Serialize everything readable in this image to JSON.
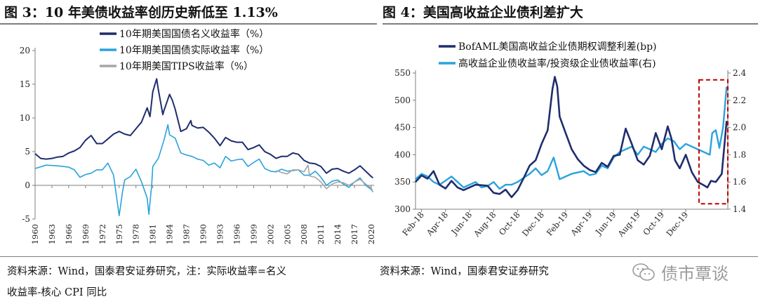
{
  "figure3": {
    "title": "图 3：10 年美债收益率创历史新低至 1.13%",
    "source_line1": "资料来源：Wind，国泰君安证券研究，注：实际收益率=名义",
    "source_line2": "收益率-核心 CPI 同比",
    "chart_data": {
      "type": "line",
      "y_ticks": [
        "20",
        "15",
        "10",
        "5",
        "0",
        "-5"
      ],
      "ylim": [
        -5,
        20
      ],
      "x_ticks": [
        "1960",
        "1963",
        "1966",
        "1969",
        "1972",
        "1975",
        "1978",
        "1981",
        "1984",
        "1987",
        "1990",
        "1993",
        "1996",
        "1999",
        "2002",
        "2005",
        "2008",
        "2011",
        "2014",
        "2017",
        "2020"
      ],
      "xlim": [
        1960,
        2020.5
      ],
      "grid": false,
      "legend_position": "top-center",
      "series": [
        {
          "name": "10年期美国国债名义收益率（%）",
          "color": "#1f2d6e",
          "points": [
            [
              1960,
              4.7
            ],
            [
              1961,
              4.0
            ],
            [
              1962,
              3.9
            ],
            [
              1963,
              4.0
            ],
            [
              1964,
              4.2
            ],
            [
              1965,
              4.3
            ],
            [
              1966,
              4.8
            ],
            [
              1967,
              5.1
            ],
            [
              1968,
              5.6
            ],
            [
              1969,
              6.7
            ],
            [
              1970,
              7.4
            ],
            [
              1971,
              6.2
            ],
            [
              1972,
              6.2
            ],
            [
              1973,
              6.9
            ],
            [
              1974,
              7.6
            ],
            [
              1975,
              8.0
            ],
            [
              1976,
              7.6
            ],
            [
              1977,
              7.4
            ],
            [
              1978,
              8.4
            ],
            [
              1979,
              9.4
            ],
            [
              1980,
              11.5
            ],
            [
              1980.5,
              10.2
            ],
            [
              1981,
              13.9
            ],
            [
              1981.7,
              15.8
            ],
            [
              1982,
              14.2
            ],
            [
              1982.8,
              10.5
            ],
            [
              1983,
              11.1
            ],
            [
              1984,
              13.5
            ],
            [
              1984.5,
              12.6
            ],
            [
              1985,
              11.3
            ],
            [
              1986,
              8.0
            ],
            [
              1987,
              8.4
            ],
            [
              1987.8,
              9.6
            ],
            [
              1988,
              8.9
            ],
            [
              1989,
              8.5
            ],
            [
              1990,
              8.6
            ],
            [
              1991,
              7.9
            ],
            [
              1992,
              7.0
            ],
            [
              1993,
              5.9
            ],
            [
              1994,
              7.1
            ],
            [
              1995,
              6.6
            ],
            [
              1996,
              6.4
            ],
            [
              1997,
              6.4
            ],
            [
              1998,
              5.3
            ],
            [
              1999,
              5.6
            ],
            [
              2000,
              6.0
            ],
            [
              2001,
              5.0
            ],
            [
              2002,
              4.6
            ],
            [
              2003,
              4.0
            ],
            [
              2004,
              4.3
            ],
            [
              2005,
              4.3
            ],
            [
              2006,
              4.8
            ],
            [
              2007,
              4.6
            ],
            [
              2008,
              3.7
            ],
            [
              2009,
              3.3
            ],
            [
              2010,
              3.2
            ],
            [
              2011,
              2.8
            ],
            [
              2012,
              1.8
            ],
            [
              2013,
              2.4
            ],
            [
              2014,
              2.5
            ],
            [
              2015,
              2.1
            ],
            [
              2016,
              1.8
            ],
            [
              2017,
              2.3
            ],
            [
              2018,
              2.9
            ],
            [
              2019,
              2.1
            ],
            [
              2020,
              1.3
            ],
            [
              2020.3,
              1.1
            ]
          ]
        },
        {
          "name": "10年期美国国债实际收益率（%）",
          "color": "#29a3dc",
          "points": [
            [
              1960,
              2.5
            ],
            [
              1962,
              3.0
            ],
            [
              1964,
              2.9
            ],
            [
              1966,
              2.7
            ],
            [
              1967,
              2.3
            ],
            [
              1968,
              1.2
            ],
            [
              1969,
              1.6
            ],
            [
              1970,
              1.8
            ],
            [
              1971,
              2.3
            ],
            [
              1972,
              2.3
            ],
            [
              1973,
              3.3
            ],
            [
              1974,
              1.5
            ],
            [
              1975,
              -4.5
            ],
            [
              1975.6,
              -1.0
            ],
            [
              1976,
              0.8
            ],
            [
              1977,
              1.3
            ],
            [
              1978,
              2.4
            ],
            [
              1979,
              0.5
            ],
            [
              1980,
              -1.9
            ],
            [
              1980.3,
              -4.3
            ],
            [
              1980.8,
              0.0
            ],
            [
              1981,
              2.8
            ],
            [
              1982,
              4.0
            ],
            [
              1983,
              6.7
            ],
            [
              1983.7,
              9.0
            ],
            [
              1984,
              7.5
            ],
            [
              1985,
              7.0
            ],
            [
              1986,
              4.8
            ],
            [
              1987,
              4.5
            ],
            [
              1988,
              4.3
            ],
            [
              1989,
              3.9
            ],
            [
              1990,
              3.7
            ],
            [
              1991,
              3.0
            ],
            [
              1992,
              3.3
            ],
            [
              1993,
              2.6
            ],
            [
              1994,
              4.3
            ],
            [
              1995,
              3.6
            ],
            [
              1996,
              3.8
            ],
            [
              1997,
              3.9
            ],
            [
              1998,
              2.8
            ],
            [
              1999,
              3.4
            ],
            [
              2000,
              3.9
            ],
            [
              2001,
              2.5
            ],
            [
              2002,
              2.1
            ],
            [
              2003,
              2.0
            ],
            [
              2004,
              2.4
            ],
            [
              2005,
              2.1
            ],
            [
              2006,
              2.2
            ],
            [
              2007,
              2.3
            ],
            [
              2008,
              1.5
            ],
            [
              2009,
              1.5
            ],
            [
              2010,
              2.1
            ],
            [
              2011,
              1.2
            ],
            [
              2012,
              0.0
            ],
            [
              2013,
              0.6
            ],
            [
              2014,
              0.8
            ],
            [
              2015,
              0.2
            ],
            [
              2016,
              -0.3
            ],
            [
              2017,
              0.5
            ],
            [
              2018,
              1.1
            ],
            [
              2019,
              0.0
            ],
            [
              2020,
              -0.6
            ],
            [
              2020.3,
              -1.0
            ]
          ]
        },
        {
          "name": "10年期美国TIPS收益率（%）",
          "color": "#a6a6a6",
          "points": [
            [
              2003,
              2.2
            ],
            [
              2004,
              1.9
            ],
            [
              2005,
              1.7
            ],
            [
              2006,
              2.3
            ],
            [
              2007,
              2.3
            ],
            [
              2008,
              2.0
            ],
            [
              2008.7,
              3.0
            ],
            [
              2009,
              1.4
            ],
            [
              2010,
              1.2
            ],
            [
              2011,
              0.5
            ],
            [
              2012,
              -0.5
            ],
            [
              2013,
              0.2
            ],
            [
              2014,
              0.5
            ],
            [
              2015,
              0.4
            ],
            [
              2016,
              0.0
            ],
            [
              2017,
              0.5
            ],
            [
              2018,
              0.9
            ],
            [
              2019,
              0.2
            ],
            [
              2020,
              -0.4
            ],
            [
              2020.3,
              -1.0
            ]
          ]
        }
      ]
    }
  },
  "figure4": {
    "title": "图 4：美国高收益企业债利差扩大",
    "source": "资料来源：Wind，国泰君安证券研究",
    "chart_data": {
      "type": "line",
      "y_ticks": [
        "550",
        "500",
        "450",
        "400",
        "350",
        "300"
      ],
      "ylim": [
        300,
        550
      ],
      "y2_ticks": [
        "2.4",
        "2.2",
        "2.0",
        "1.8",
        "1.6",
        "1.4"
      ],
      "y2lim": [
        1.4,
        2.4
      ],
      "x_ticks": [
        "Feb-18",
        "Apr-18",
        "Jun-18",
        "Aug-18",
        "Oct-18",
        "Dec-18",
        "Feb-19",
        "Apr-19",
        "Jun-19",
        "Aug-19",
        "Oct-19",
        "Dec-19"
      ],
      "xlim": [
        0,
        26
      ],
      "grid": false,
      "legend_position": "top-center",
      "highlight_box": {
        "x": [
          23.6,
          26.0
        ],
        "y2": [
          1.44,
          2.35
        ],
        "color": "#c00000"
      },
      "series": [
        {
          "name": "BofAML美国高收益企业债期权调整利差(bp)",
          "axis": "left",
          "color": "#1f2d6e",
          "points": [
            [
              0,
              350
            ],
            [
              0.5,
              362
            ],
            [
              1,
              356
            ],
            [
              1.5,
              370
            ],
            [
              2,
              345
            ],
            [
              2.5,
              338
            ],
            [
              3,
              352
            ],
            [
              3.5,
              340
            ],
            [
              4,
              335
            ],
            [
              5,
              345
            ],
            [
              6,
              343
            ],
            [
              6.5,
              330
            ],
            [
              7,
              328
            ],
            [
              7.5,
              336
            ],
            [
              8,
              322
            ],
            [
              8.5,
              335
            ],
            [
              9,
              357
            ],
            [
              9.5,
              380
            ],
            [
              10,
              390
            ],
            [
              10.5,
              420
            ],
            [
              11,
              445
            ],
            [
              11.4,
              520
            ],
            [
              11.6,
              543
            ],
            [
              11.8,
              525
            ],
            [
              12,
              470
            ],
            [
              12.5,
              440
            ],
            [
              13,
              410
            ],
            [
              13.5,
              392
            ],
            [
              14,
              380
            ],
            [
              14.5,
              372
            ],
            [
              15,
              368
            ],
            [
              15.5,
              385
            ],
            [
              16,
              378
            ],
            [
              16.5,
              398
            ],
            [
              17,
              400
            ],
            [
              17.5,
              448
            ],
            [
              18,
              420
            ],
            [
              18.5,
              390
            ],
            [
              19,
              382
            ],
            [
              19.5,
              398
            ],
            [
              20,
              440
            ],
            [
              20.5,
              410
            ],
            [
              21,
              452
            ],
            [
              21.3,
              430
            ],
            [
              21.6,
              390
            ],
            [
              22,
              375
            ],
            [
              22.5,
              400
            ],
            [
              23,
              368
            ],
            [
              23.5,
              350
            ],
            [
              24,
              344
            ],
            [
              24.3,
              340
            ],
            [
              24.6,
              352
            ],
            [
              25,
              350
            ],
            [
              25.5,
              365
            ],
            [
              25.9,
              462
            ]
          ]
        },
        {
          "name": "高收益企业债收益率/投资级企业债收益率(右)",
          "axis": "right",
          "color": "#29a3dc",
          "points": [
            [
              0,
              1.62
            ],
            [
              0.5,
              1.66
            ],
            [
              1,
              1.64
            ],
            [
              1.5,
              1.6
            ],
            [
              2,
              1.58
            ],
            [
              3,
              1.64
            ],
            [
              3.5,
              1.6
            ],
            [
              4,
              1.56
            ],
            [
              5,
              1.6
            ],
            [
              5.5,
              1.56
            ],
            [
              6,
              1.57
            ],
            [
              6.5,
              1.6
            ],
            [
              7,
              1.55
            ],
            [
              7.5,
              1.58
            ],
            [
              8,
              1.58
            ],
            [
              8.5,
              1.6
            ],
            [
              9,
              1.63
            ],
            [
              9.5,
              1.66
            ],
            [
              10,
              1.7
            ],
            [
              10.5,
              1.65
            ],
            [
              11,
              1.68
            ],
            [
              11.5,
              1.78
            ],
            [
              12,
              1.62
            ],
            [
              12.5,
              1.64
            ],
            [
              13,
              1.66
            ],
            [
              14,
              1.68
            ],
            [
              14.5,
              1.65
            ],
            [
              15,
              1.66
            ],
            [
              15.5,
              1.72
            ],
            [
              16,
              1.7
            ],
            [
              16.5,
              1.78
            ],
            [
              17,
              1.82
            ],
            [
              17.5,
              1.84
            ],
            [
              18,
              1.86
            ],
            [
              18.5,
              1.8
            ],
            [
              19,
              1.86
            ],
            [
              19.5,
              1.84
            ],
            [
              20,
              1.82
            ],
            [
              20.5,
              1.88
            ],
            [
              21,
              1.92
            ],
            [
              21.5,
              1.9
            ],
            [
              22,
              1.84
            ],
            [
              22.5,
              1.88
            ],
            [
              23,
              1.86
            ],
            [
              23.5,
              1.84
            ],
            [
              24,
              1.82
            ],
            [
              24.5,
              1.8
            ],
            [
              24.7,
              1.96
            ],
            [
              25,
              1.98
            ],
            [
              25.3,
              1.85
            ],
            [
              25.6,
              2.0
            ],
            [
              25.9,
              2.3
            ]
          ]
        }
      ]
    }
  },
  "watermark": {
    "text": "债市覃谈",
    "icon": "wechat-icon"
  }
}
